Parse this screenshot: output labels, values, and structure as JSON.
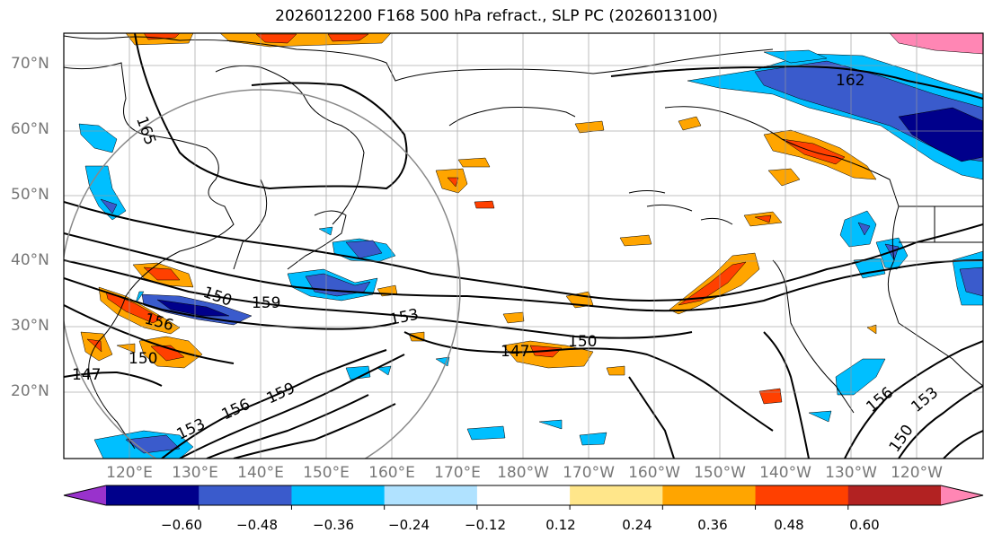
{
  "title": "2026012200 F168 500 hPa refract., SLP PC (2026013100)",
  "lat_labels": [
    "70°N",
    "60°N",
    "50°N",
    "40°N",
    "30°N",
    "20°N"
  ],
  "lon_labels": [
    "120°E",
    "130°E",
    "140°E",
    "150°E",
    "160°E",
    "170°E",
    "180°W",
    "170°W",
    "160°W",
    "150°W",
    "140°W",
    "130°W",
    "120°W"
  ],
  "contour_labels": [
    "165",
    "162",
    "159",
    "156",
    "153",
    "150",
    "147",
    "150",
    "156",
    "153",
    "150",
    "147",
    "159",
    "156",
    "153",
    "150"
  ],
  "colorbar": {
    "colors": [
      "#9932cc",
      "#00008b",
      "#3a5bcc",
      "#00bfff",
      "#b0e2ff",
      "#ffffff",
      "#ffe68a",
      "#ffa500",
      "#ff4000",
      "#b22222",
      "#ff86b4"
    ],
    "tick_labels": [
      "−0.60",
      "−0.48",
      "−0.36",
      "−0.24",
      "−0.12",
      "0.12",
      "0.24",
      "0.36",
      "0.48",
      "0.60"
    ]
  },
  "chart_data": {
    "type": "heatmap",
    "title": "2026012200 F168 500 hPa refract., SLP PC (2026013100)",
    "lat_range": [
      10,
      75
    ],
    "lon_range": [
      110,
      250
    ],
    "contour_field": "SLP",
    "contour_levels": [
      147,
      150,
      153,
      156,
      159,
      162,
      165
    ],
    "colorbar_levels": [
      -0.6,
      -0.48,
      -0.36,
      -0.24,
      -0.12,
      0.12,
      0.24,
      0.36,
      0.48,
      0.6
    ],
    "grid": true
  }
}
